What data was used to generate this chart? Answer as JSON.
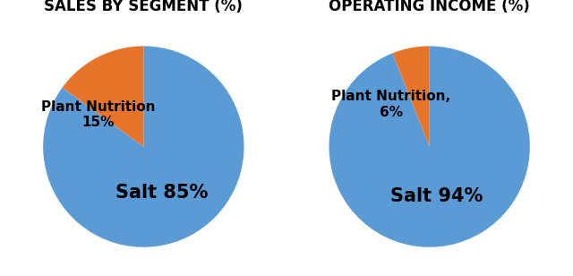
{
  "chart1_title": "SALES BY SEGMENT (%)",
  "chart2_title": "OPERATING INCOME (%)",
  "chart1_values": [
    85,
    15
  ],
  "chart2_values": [
    94,
    6
  ],
  "colors": [
    "#5B9BD5",
    "#E8742A"
  ],
  "title_fontsize": 12,
  "salt_label_fontsize": 15,
  "pn_label_fontsize": 11,
  "background_color": "#ffffff",
  "chart1_salt_label": "Salt 85%",
  "chart1_pn_label": "Plant Nutrition\n15%",
  "chart2_salt_label": "Salt 94%",
  "chart2_pn_label": "Plant Nutrition,\n6%"
}
